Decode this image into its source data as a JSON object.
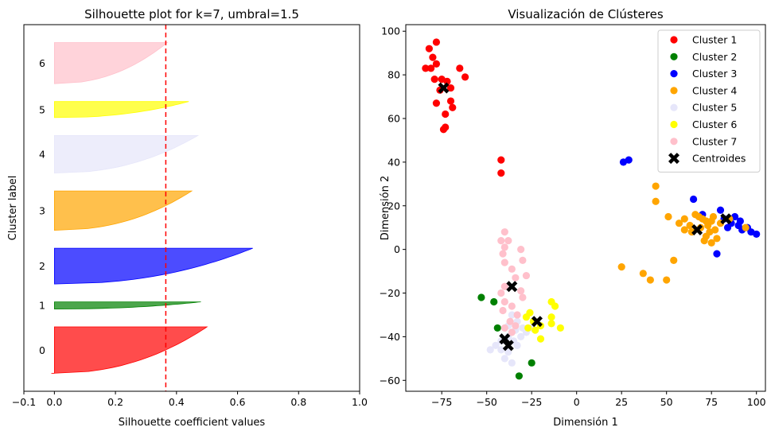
{
  "chart_data": [
    {
      "type": "area",
      "title": "Silhouette plot for k=7, umbral=1.5",
      "xlabel": "Silhouette coefficient values",
      "ylabel": "Cluster label",
      "xlim": [
        -0.1,
        1.0
      ],
      "xticks": [
        -0.1,
        0.0,
        0.2,
        0.4,
        0.6,
        0.8,
        1.0
      ],
      "xtick_labels": [
        "−0.1",
        "0.0",
        "0.2",
        "0.4",
        "0.6",
        "0.8",
        "1.0"
      ],
      "average_silhouette_line": 0.365,
      "grid": false,
      "clusters": [
        {
          "label": "0",
          "color": "#ff0000",
          "size": 26,
          "max": 0.5,
          "min": -0.01,
          "start": 10
        },
        {
          "label": "1",
          "color": "#008000",
          "size": 4,
          "max": 0.48,
          "min": 0.0,
          "start": 46
        },
        {
          "label": "2",
          "color": "#0000ff",
          "size": 20,
          "max": 0.65,
          "min": 0.0,
          "start": 60
        },
        {
          "label": "3",
          "color": "#ffa500",
          "size": 22,
          "max": 0.45,
          "min": 0.0,
          "start": 90
        },
        {
          "label": "4",
          "color": "#e6e6fa",
          "size": 21,
          "max": 0.47,
          "min": 0.0,
          "start": 122
        },
        {
          "label": "5",
          "color": "#ffff00",
          "size": 9,
          "max": 0.44,
          "min": 0.0,
          "start": 153
        },
        {
          "label": "6",
          "color": "#ffc0cb",
          "size": 23,
          "max": 0.37,
          "min": 0.0,
          "start": 172
        }
      ]
    },
    {
      "type": "scatter",
      "title": "Visualización de Clústeres",
      "xlabel": "Dimensión 1",
      "ylabel": "Dimensión 2",
      "xlim": [
        -95,
        105
      ],
      "ylim": [
        -65,
        103
      ],
      "xticks": [
        -75,
        -50,
        -25,
        0,
        25,
        50,
        75,
        100
      ],
      "xtick_labels": [
        "−75",
        "−50",
        "−25",
        "0",
        "25",
        "50",
        "75",
        "100"
      ],
      "yticks": [
        -60,
        -40,
        -20,
        0,
        20,
        40,
        60,
        80,
        100
      ],
      "ytick_labels": [
        "−60",
        "−40",
        "−20",
        "0",
        "20",
        "40",
        "60",
        "80",
        "100"
      ],
      "legend_placement": "top-right",
      "grid": false,
      "series": [
        {
          "name": "Cluster 1",
          "color": "#ff0000",
          "points": [
            [
              -78,
              95
            ],
            [
              -82,
              92
            ],
            [
              -80,
              88
            ],
            [
              -78,
              85
            ],
            [
              -81,
              83
            ],
            [
              -84,
              83
            ],
            [
              -75,
              78
            ],
            [
              -79,
              78
            ],
            [
              -72,
              77
            ],
            [
              -76,
              73
            ],
            [
              -70,
              74
            ],
            [
              -65,
              83
            ],
            [
              -62,
              79
            ],
            [
              -70,
              68
            ],
            [
              -69,
              65
            ],
            [
              -78,
              67
            ],
            [
              -73,
              62
            ],
            [
              -74,
              55
            ],
            [
              -73,
              56
            ],
            [
              -42,
              41
            ],
            [
              -42,
              35
            ]
          ]
        },
        {
          "name": "Cluster 2",
          "color": "#008000",
          "points": [
            [
              -53,
              -22
            ],
            [
              -46,
              -24
            ],
            [
              -44,
              -36
            ],
            [
              -25,
              -52
            ],
            [
              -32,
              -58
            ]
          ]
        },
        {
          "name": "Cluster 3",
          "color": "#0000ff",
          "points": [
            [
              26,
              40
            ],
            [
              29,
              41
            ],
            [
              65,
              23
            ],
            [
              70,
              16
            ],
            [
              80,
              18
            ],
            [
              82,
              14
            ],
            [
              86,
              12
            ],
            [
              90,
              11
            ],
            [
              92,
              9
            ],
            [
              95,
              10
            ],
            [
              97,
              8
            ],
            [
              100,
              7
            ],
            [
              78,
              -2
            ],
            [
              88,
              15
            ],
            [
              91,
              13
            ],
            [
              84,
              10
            ]
          ]
        },
        {
          "name": "Cluster 4",
          "color": "#ffa500",
          "points": [
            [
              44,
              29
            ],
            [
              44,
              22
            ],
            [
              51,
              15
            ],
            [
              57,
              12
            ],
            [
              60,
              14
            ],
            [
              63,
              11
            ],
            [
              66,
              16
            ],
            [
              68,
              15
            ],
            [
              70,
              14
            ],
            [
              72,
              13
            ],
            [
              73,
              11
            ],
            [
              75,
              13
            ],
            [
              76,
              15
            ],
            [
              77,
              9
            ],
            [
              80,
              12
            ],
            [
              60,
              9
            ],
            [
              64,
              8
            ],
            [
              69,
              10
            ],
            [
              72,
              6
            ],
            [
              74,
              8
            ],
            [
              75,
              3
            ],
            [
              78,
              5
            ],
            [
              85,
              14
            ],
            [
              94,
              10
            ],
            [
              25,
              -8
            ],
            [
              37,
              -11
            ],
            [
              41,
              -14
            ],
            [
              50,
              -14
            ],
            [
              54,
              -5
            ],
            [
              71,
              4
            ]
          ]
        },
        {
          "name": "Cluster 5",
          "color": "#e6e6fa",
          "points": [
            [
              -48,
              -46
            ],
            [
              -45,
              -44
            ],
            [
              -42,
              -46
            ],
            [
              -38,
              -47
            ],
            [
              -36,
              -52
            ],
            [
              -40,
              -50
            ],
            [
              -33,
              -44
            ],
            [
              -35,
              -42
            ],
            [
              -31,
              -40
            ],
            [
              -30,
              -36
            ],
            [
              -33,
              -33
            ],
            [
              -38,
              -35
            ],
            [
              -34,
              -37
            ],
            [
              -28,
              -38
            ],
            [
              -36,
              -30
            ],
            [
              -25,
              -36
            ],
            [
              -42,
              -42
            ],
            [
              -38,
              -40
            ]
          ]
        },
        {
          "name": "Cluster 6",
          "color": "#ffff00",
          "points": [
            [
              -14,
              -24
            ],
            [
              -12,
              -26
            ],
            [
              -14,
              -31
            ],
            [
              -14,
              -34
            ],
            [
              -9,
              -36
            ],
            [
              -20,
              -35
            ],
            [
              -23,
              -37
            ],
            [
              -27,
              -36
            ],
            [
              -20,
              -41
            ],
            [
              -28,
              -31
            ],
            [
              -24,
              -33
            ],
            [
              -26,
              -29
            ]
          ]
        },
        {
          "name": "Cluster 7",
          "color": "#ffc0cb",
          "points": [
            [
              -40,
              8
            ],
            [
              -42,
              4
            ],
            [
              -38,
              4
            ],
            [
              -40,
              1
            ],
            [
              -41,
              -2
            ],
            [
              -40,
              -6
            ],
            [
              -31,
              0
            ],
            [
              -30,
              -5
            ],
            [
              -36,
              -9
            ],
            [
              -34,
              -13
            ],
            [
              -40,
              -17
            ],
            [
              -42,
              -20
            ],
            [
              -31,
              -19
            ],
            [
              -30,
              -22
            ],
            [
              -40,
              -24
            ],
            [
              -36,
              -26
            ],
            [
              -41,
              -28
            ],
            [
              -33,
              -30
            ],
            [
              -37,
              -33
            ],
            [
              -40,
              -36
            ],
            [
              -36,
              -38
            ],
            [
              -34,
              -35
            ],
            [
              -28,
              -12
            ]
          ]
        },
        {
          "name": "Centroides",
          "color": "#000000",
          "marker": "x",
          "points": [
            [
              -74,
              74
            ],
            [
              -36,
              -17
            ],
            [
              -40,
              -41
            ],
            [
              -38,
              -44
            ],
            [
              -22,
              -33
            ],
            [
              67,
              9
            ],
            [
              83,
              14
            ]
          ]
        }
      ]
    }
  ]
}
